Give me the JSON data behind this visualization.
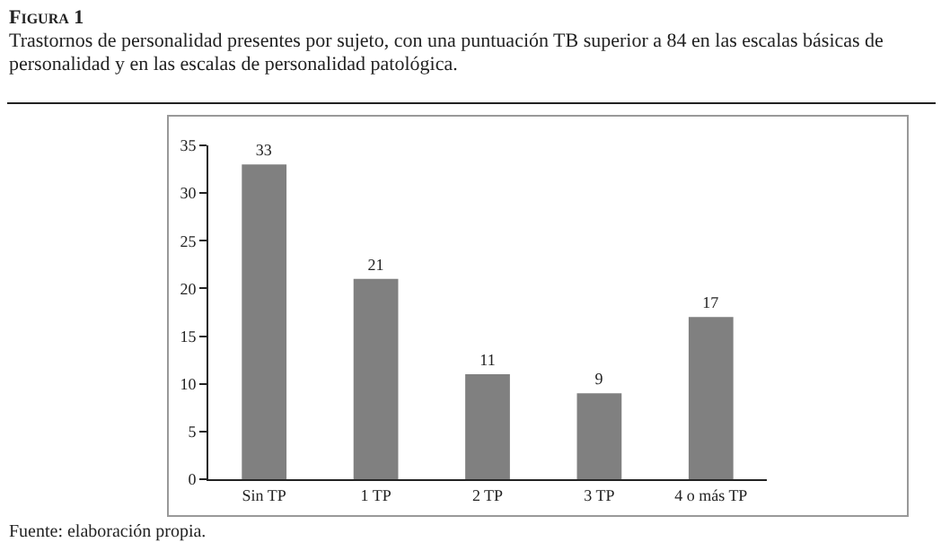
{
  "chart_data": {
    "type": "bar",
    "title": "Figura 1",
    "subtitle": "Trastornos de personalidad presentes por sujeto, con una puntuación TB superior a 84 en las escalas básicas de personalidad y en las escalas de personalidad patológica.",
    "categories": [
      "Sin TP",
      "1 TP",
      "2 TP",
      "3 TP",
      "4 o más TP"
    ],
    "values": [
      33,
      21,
      11,
      9,
      17
    ],
    "color": "#808080",
    "ylim": [
      0,
      35
    ],
    "yticks": [
      0,
      5,
      10,
      15,
      20,
      25,
      30,
      35
    ],
    "grid": false,
    "data_labels": true,
    "annotations": [
      "Fuente: elaboración propia."
    ]
  }
}
